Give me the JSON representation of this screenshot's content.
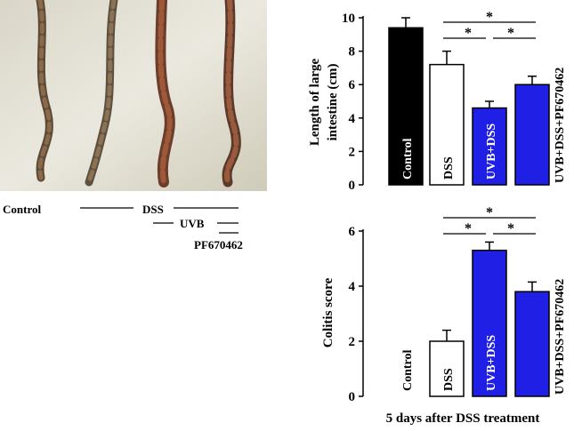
{
  "photo": {
    "labels": {
      "control": "Control",
      "dss": "DSS",
      "uvb": "UVB",
      "pf": "PF670462"
    }
  },
  "chart_data": [
    {
      "type": "bar",
      "categories": [
        "Control",
        "DSS",
        "UVB+DSS",
        "UVB+DSS+PF670462"
      ],
      "values": [
        9.4,
        7.2,
        4.6,
        6.0
      ],
      "errors": [
        0.6,
        0.8,
        0.4,
        0.5
      ],
      "bar_colors": [
        "#000000",
        "#ffffff",
        "#1f1fe6",
        "#1f1fe6"
      ],
      "bar_label_colors": [
        "#ffffff",
        "#000000",
        "#ffffff",
        "#000000"
      ],
      "ylabel": "Length of large intestine (cm)",
      "ylabel_lines": [
        "Length of large",
        "intestine (cm)"
      ],
      "ylim": [
        0,
        10
      ],
      "yticks": [
        "0",
        "2",
        "4",
        "6",
        "8",
        "10"
      ],
      "significance": [
        {
          "from": 1,
          "to": 3,
          "label": "*"
        },
        {
          "from": 1,
          "to": 2,
          "label": "*"
        },
        {
          "from": 2,
          "to": 3,
          "label": "*"
        }
      ]
    },
    {
      "type": "bar",
      "categories": [
        "Control",
        "DSS",
        "UVB+DSS",
        "UVB+DSS+PF670462"
      ],
      "values": [
        0,
        2.0,
        5.3,
        3.8
      ],
      "errors": [
        0,
        0.4,
        0.3,
        0.35
      ],
      "bar_colors": [
        "#000000",
        "#ffffff",
        "#1f1fe6",
        "#1f1fe6"
      ],
      "bar_label_colors": [
        "#000000",
        "#000000",
        "#ffffff",
        "#000000"
      ],
      "ylabel": "Colitis score",
      "ylim": [
        0,
        6
      ],
      "yticks": [
        "0",
        "2",
        "4",
        "6"
      ],
      "significance": [
        {
          "from": 1,
          "to": 3,
          "label": "*"
        },
        {
          "from": 1,
          "to": 2,
          "label": "*"
        },
        {
          "from": 2,
          "to": 3,
          "label": "*"
        }
      ],
      "xlabel": "5 days after DSS treatment"
    }
  ]
}
